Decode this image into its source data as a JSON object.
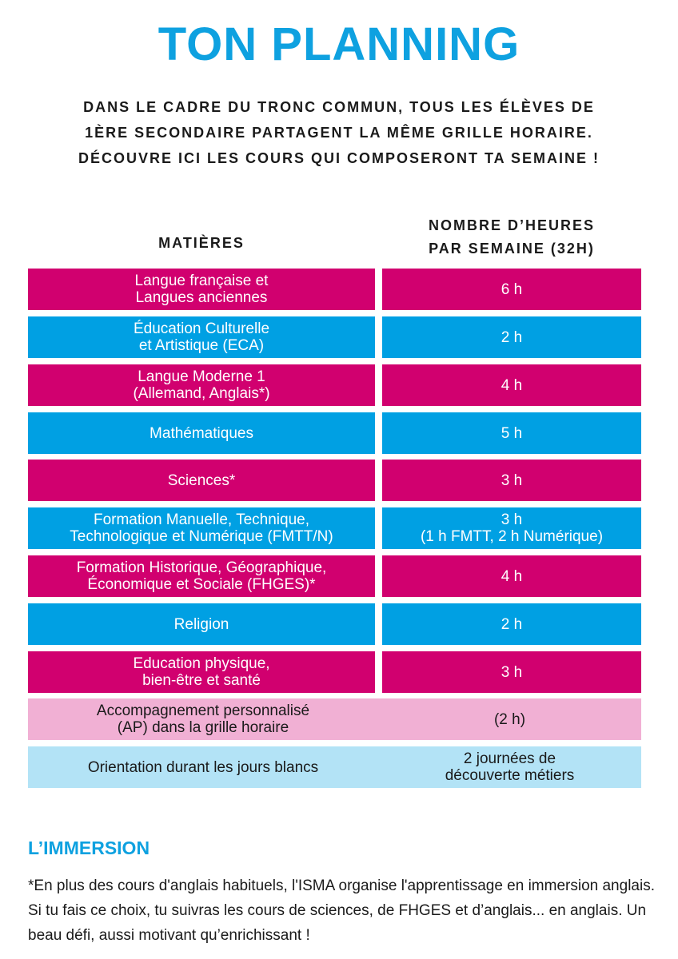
{
  "title": "TON PLANNING",
  "intro": [
    "Dans le cadre du tronc commun, tous les élèves de",
    "1ère secondaire partagent la même grille horaire.",
    "Découvre ici les cours qui composeront ta semaine !"
  ],
  "headers": {
    "subjects": "MATIÈRES",
    "hours_line1": "NOMBRE D’HEURES",
    "hours_line2": "PAR SEMAINE (32H)"
  },
  "rows": [
    {
      "subject": [
        "Langue française et",
        "Langues anciennes"
      ],
      "hours": [
        "6 h"
      ],
      "style": "magenta"
    },
    {
      "subject": [
        "Éducation Culturelle",
        "et Artistique (ECA)"
      ],
      "hours": [
        "2 h"
      ],
      "style": "blue"
    },
    {
      "subject": [
        "Langue Moderne 1",
        "(Allemand, Anglais*)"
      ],
      "hours": [
        "4 h"
      ],
      "style": "magenta"
    },
    {
      "subject": [
        "Mathématiques"
      ],
      "hours": [
        "5 h"
      ],
      "style": "blue"
    },
    {
      "subject": [
        "Sciences*"
      ],
      "hours": [
        "3 h"
      ],
      "style": "magenta"
    },
    {
      "subject": [
        "Formation Manuelle, Technique,",
        "Technologique et Numérique (FMTT/N)"
      ],
      "hours": [
        "3 h",
        "(1 h FMTT, 2 h Numérique)"
      ],
      "style": "blue"
    },
    {
      "subject": [
        "Formation Historique, Géographique,",
        "Économique et Sociale (FHGES)*"
      ],
      "hours": [
        "4 h"
      ],
      "style": "magenta"
    },
    {
      "subject": [
        "Religion"
      ],
      "hours": [
        "2 h"
      ],
      "style": "blue"
    },
    {
      "subject": [
        "Education physique,",
        "bien-être et santé"
      ],
      "hours": [
        "3 h"
      ],
      "style": "magenta"
    },
    {
      "subject": [
        "Accompagnement personnalisé",
        "(AP) dans la grille horaire"
      ],
      "hours": [
        "(2 h)"
      ],
      "style": "pink"
    },
    {
      "subject": [
        "Orientation durant les jours blancs"
      ],
      "hours": [
        "2 journées de",
        "découverte métiers"
      ],
      "style": "lightblue"
    }
  ],
  "immersion": {
    "title": "L’IMMERSION",
    "text": "*En plus des cours d'anglais habituels, l'ISMA organise l'apprentissage en immersion anglais. Si tu fais ce choix, tu suivras les cours de sciences, de FHGES et d’anglais... en anglais. Un beau défi, aussi motivant qu’enrichissant !"
  },
  "colors": {
    "magenta": "#d1006f",
    "blue": "#00a0e3",
    "pink": "#f1b0d4",
    "lightblue": "#b3e3f6",
    "title": "#0ea1e0"
  }
}
